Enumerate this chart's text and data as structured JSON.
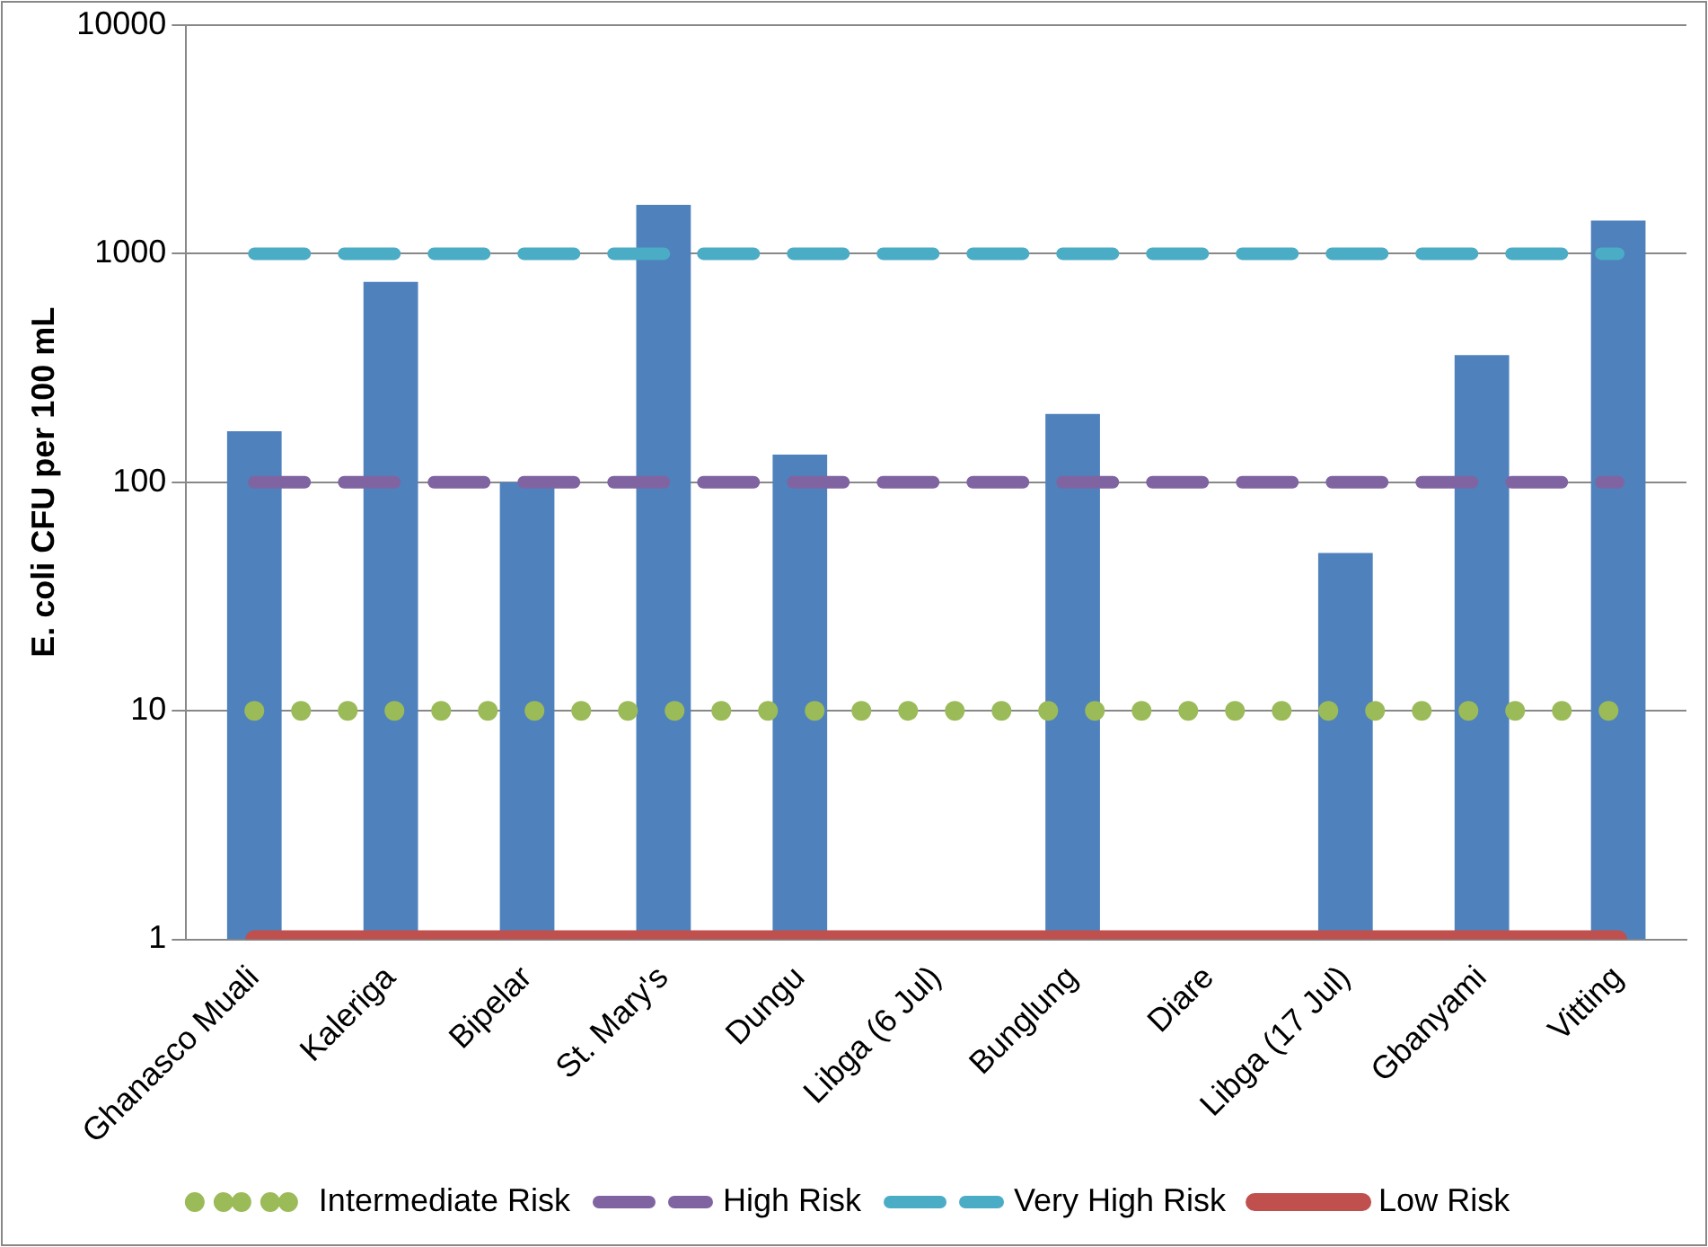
{
  "chart_data": {
    "type": "bar",
    "ylabel": "E. coli CFU per 100 mL",
    "log": true,
    "grid": "y",
    "legend": "bottom",
    "categories": [
      "Ghanasco Muali",
      "Kaleriga",
      "Bipelar",
      "St. Mary's",
      "Dungu",
      "Libga (6 Jul)",
      "Bunglung",
      "Diare",
      "Libga (17 Jul)",
      "Gbanyami",
      "Vitting"
    ],
    "ylim": [
      1,
      10000
    ],
    "yticks": [
      1,
      10,
      100,
      1000,
      10000
    ],
    "series": [
      {
        "color": "#4f81bd",
        "values": [
          167,
          752,
          100,
          1636,
          132,
          null,
          199,
          null,
          49,
          360,
          1397
        ]
      },
      {
        "type": "line",
        "name": "Intermediate Risk",
        "color": "#9bbb59",
        "line_style": "dotted",
        "values": [
          10,
          10,
          10,
          10,
          10,
          10,
          10,
          10,
          10,
          10,
          10
        ]
      },
      {
        "type": "line",
        "name": "High Risk",
        "color": "#8064a2",
        "line_style": "dashed",
        "values": [
          100,
          100,
          100,
          100,
          100,
          100,
          100,
          100,
          100,
          100,
          100
        ]
      },
      {
        "type": "line",
        "name": "Very High Risk",
        "color": "#4bacc6",
        "line_style": "dashed",
        "values": [
          1000,
          1000,
          1000,
          1000,
          1000,
          1000,
          1000,
          1000,
          1000,
          1000,
          1000
        ]
      },
      {
        "type": "line",
        "name": "Low Risk",
        "color": "#c0504d",
        "line_style": "solid",
        "values": [
          1,
          1,
          1,
          1,
          1,
          1,
          1,
          1,
          1,
          1,
          1
        ]
      }
    ]
  }
}
